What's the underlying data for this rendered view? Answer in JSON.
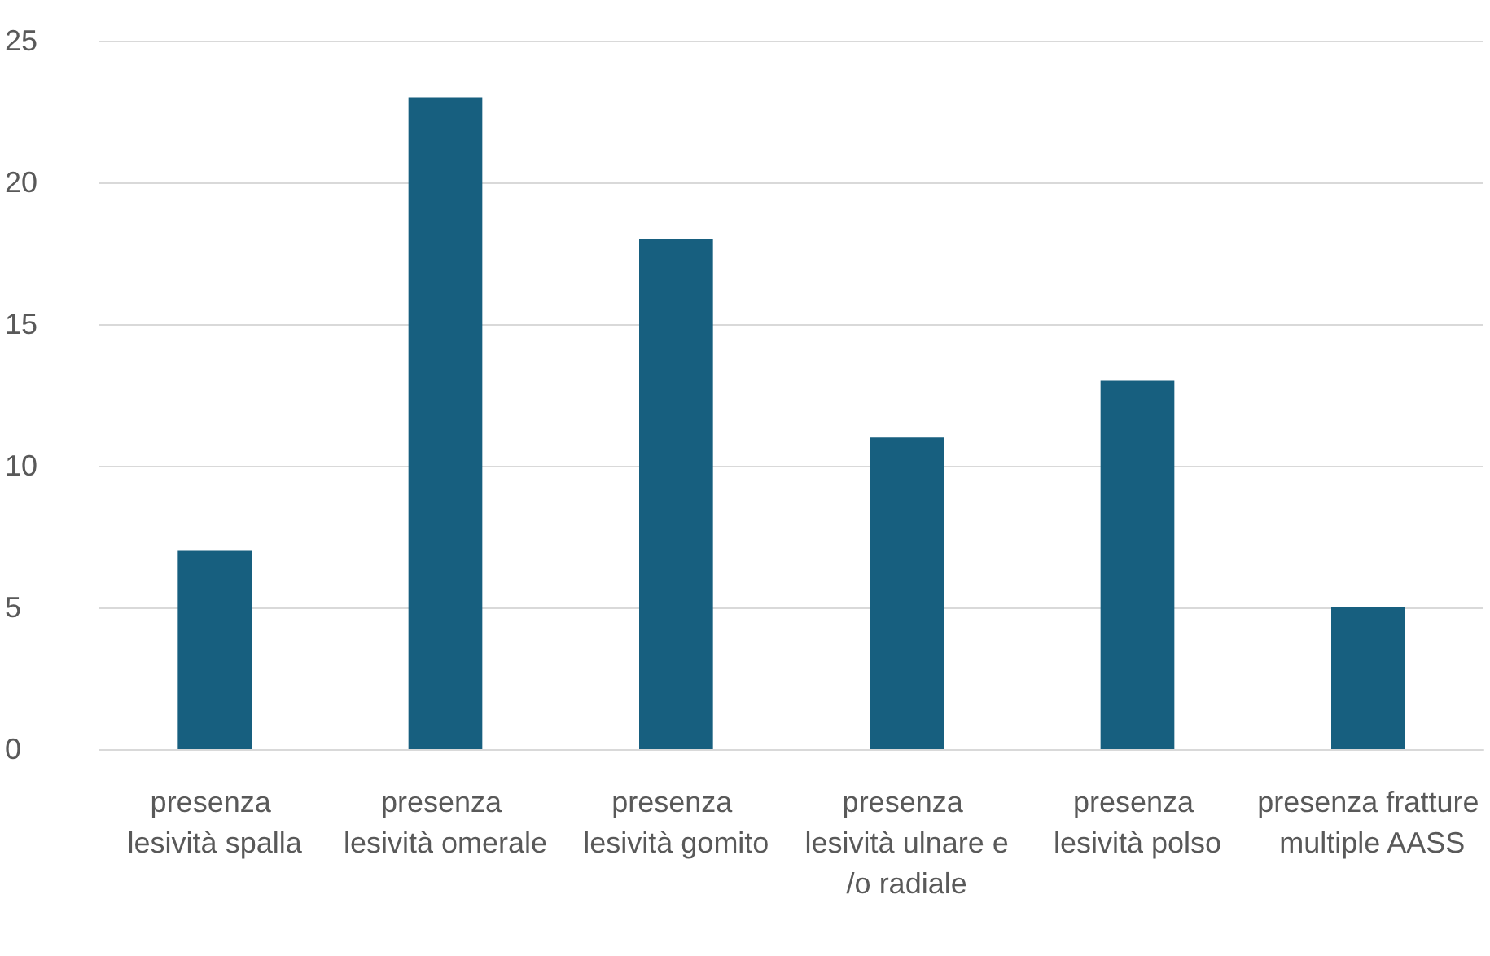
{
  "chart_data": {
    "type": "bar",
    "categories": [
      "presenza lesività spalla",
      "presenza lesività omerale",
      "presenza lesività gomito",
      "presenza lesività ulnare e/o radiale",
      "presenza lesività polso",
      "presenza fratture multiple AASS"
    ],
    "values": [
      7,
      23,
      18,
      11,
      13,
      5
    ],
    "color": "#175f7f",
    "ylim": [
      0,
      25
    ],
    "yticks": [
      0,
      5,
      10,
      15,
      20,
      25
    ],
    "grid": "y"
  }
}
